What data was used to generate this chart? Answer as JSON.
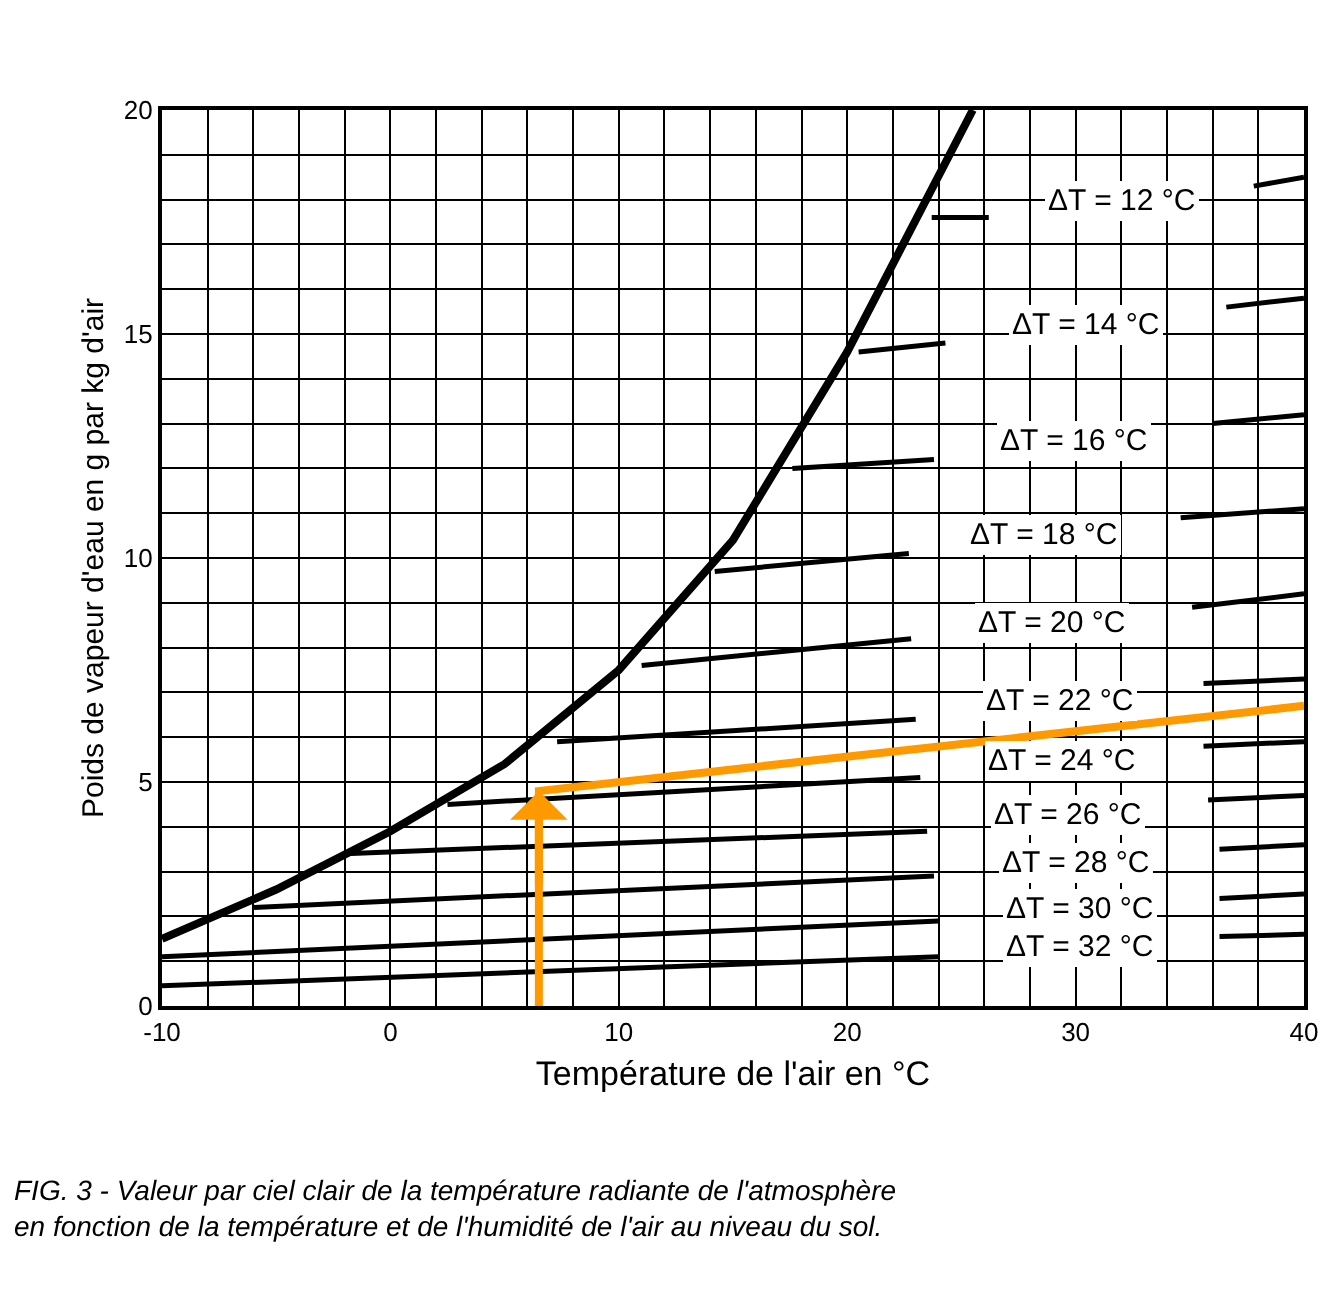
{
  "chart_data": {
    "type": "line",
    "xlabel": "Température de l'air en °C",
    "ylabel": "Poids de vapeur d'eau en g par kg d'air",
    "annotations": [
      "FIG. 3 - Valeur par ciel clair de la température radiante de l'atmosphère en fonction de la température et de l'humidité de l'air au niveau du sol."
    ],
    "xlim": [
      -10,
      40
    ],
    "ylim": [
      0,
      20
    ],
    "xticks": [
      -10,
      {
        "value": -8,
        "label": null
      },
      {
        "value": -6,
        "label": null
      },
      {
        "value": -4,
        "label": null
      },
      {
        "value": -2,
        "label": null
      },
      0,
      {
        "value": 2,
        "label": null
      },
      {
        "value": 4,
        "label": null
      },
      {
        "value": 6,
        "label": null
      },
      {
        "value": 8,
        "label": null
      },
      10,
      {
        "value": 12,
        "label": null
      },
      {
        "value": 14,
        "label": null
      },
      {
        "value": 16,
        "label": null
      },
      {
        "value": 18,
        "label": null
      },
      20,
      {
        "value": 22,
        "label": null
      },
      {
        "value": 24,
        "label": null
      },
      {
        "value": 26,
        "label": null
      },
      {
        "value": 28,
        "label": null
      },
      30,
      {
        "value": 32,
        "label": null
      },
      {
        "value": 34,
        "label": null
      },
      {
        "value": 36,
        "label": null
      },
      {
        "value": 38,
        "label": null
      },
      40
    ],
    "yticks": [
      0,
      {
        "value": 1,
        "label": null
      },
      {
        "value": 2,
        "label": null
      },
      {
        "value": 3,
        "label": null
      },
      {
        "value": 4,
        "label": null
      },
      5,
      {
        "value": 6,
        "label": null
      },
      {
        "value": 7,
        "label": null
      },
      {
        "value": 8,
        "label": null
      },
      {
        "value": 9,
        "label": null
      },
      10,
      {
        "value": 11,
        "label": null
      },
      {
        "value": 12,
        "label": null
      },
      {
        "value": 13,
        "label": null
      },
      {
        "value": 14,
        "label": null
      },
      15,
      {
        "value": 16,
        "label": null
      },
      {
        "value": 17,
        "label": null
      },
      {
        "value": 18,
        "label": null
      },
      {
        "value": 19,
        "label": null
      },
      20
    ],
    "grid": true,
    "legend": false,
    "line_style": "solid",
    "series": [
      {
        "color": "#000000",
        "x": [
          -10,
          -5,
          0,
          5,
          10,
          15,
          20,
          25.5
        ],
        "values": [
          1.5,
          2.6,
          3.9,
          5.4,
          7.5,
          10.4,
          14.6,
          20
        ]
      },
      {
        "name": "ΔT = 12 °C",
        "color": "#000000",
        "x": [
          23.7,
          26.2,
          32,
          37.8,
          40
        ],
        "values": [
          17.6,
          17.6,
          null,
          18.3,
          18.5
        ]
      },
      {
        "name": "ΔT = 14 °C",
        "color": "#000000",
        "x": [
          20.5,
          24.3,
          30,
          36.6,
          40
        ],
        "values": [
          14.6,
          14.8,
          null,
          15.6,
          15.8
        ]
      },
      {
        "name": "ΔT = 16 °C",
        "color": "#000000",
        "x": [
          17.6,
          23.8,
          30,
          36,
          40
        ],
        "values": [
          12,
          12.2,
          null,
          13,
          13.2
        ]
      },
      {
        "name": "ΔT = 18 °C",
        "color": "#000000",
        "x": [
          14.2,
          22.7,
          29,
          34.6,
          40
        ],
        "values": [
          9.7,
          10.1,
          null,
          10.9,
          11.1
        ]
      },
      {
        "name": "ΔT = 20 °C",
        "color": "#000000",
        "x": [
          11,
          22.8,
          29,
          35.1,
          40
        ],
        "values": [
          7.6,
          8.2,
          null,
          8.9,
          9.2
        ]
      },
      {
        "name": "ΔT = 22 °C",
        "color": "#000000",
        "x": [
          7.3,
          23,
          29,
          35.6,
          40
        ],
        "values": [
          5.9,
          6.4,
          null,
          7.2,
          7.3
        ]
      },
      {
        "name": "ΔT = 24 °C",
        "color": "#000000",
        "x": [
          2.5,
          23.2,
          29,
          35.6,
          40
        ],
        "values": [
          4.5,
          5.1,
          null,
          5.8,
          5.9
        ]
      },
      {
        "name": "ΔT = 26 °C",
        "color": "#000000",
        "x": [
          -2,
          23.5,
          29,
          35.8,
          40
        ],
        "values": [
          3.4,
          3.9,
          null,
          4.6,
          4.7
        ]
      },
      {
        "name": "ΔT = 28 °C",
        "color": "#000000",
        "x": [
          -6,
          23.8,
          30,
          36.3,
          40
        ],
        "values": [
          2.2,
          2.9,
          null,
          3.5,
          3.6
        ]
      },
      {
        "name": "ΔT = 30 °C",
        "color": "#000000",
        "x": [
          -10,
          24,
          30,
          36.3,
          40
        ],
        "values": [
          1.1,
          1.9,
          null,
          2.4,
          2.5
        ]
      },
      {
        "name": "ΔT = 32 °C",
        "color": "#000000",
        "x": [
          -10,
          24,
          30,
          36.3,
          40
        ],
        "values": [
          0.45,
          1.1,
          null,
          1.55,
          1.6
        ]
      },
      {
        "color": "#ff9900",
        "x": [
          6.5,
          6.5,
          40
        ],
        "values": [
          0,
          4.8,
          6.7
        ]
      }
    ]
  }
}
